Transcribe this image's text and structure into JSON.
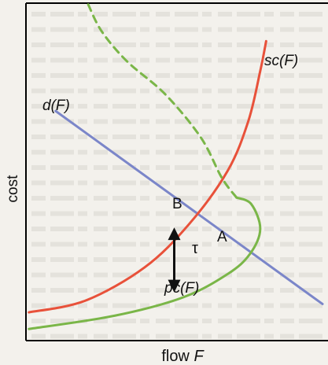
{
  "chart_data": {
    "type": "line",
    "title": "",
    "xlabel_prefix": "flow",
    "xlabel_var": "F",
    "ylabel": "cost",
    "grid": false,
    "background_text_note": "faint unreadable bleed-through text from facing page",
    "xlim": [
      0,
      10
    ],
    "ylim": [
      0,
      10
    ],
    "series": [
      {
        "name": "d(F)",
        "color": "#7b86c9",
        "style": "solid",
        "x": [
          1.0,
          10.0
        ],
        "y": [
          6.9,
          1.1
        ]
      },
      {
        "name": "sc(F)",
        "color": "#e8513a",
        "style": "solid",
        "x": [
          0.1,
          2.0,
          4.0,
          5.5,
          6.8,
          7.5,
          7.9,
          8.1
        ],
        "y": [
          0.85,
          1.2,
          2.2,
          3.5,
          5.1,
          6.6,
          8.1,
          9.0
        ]
      },
      {
        "name": "pc(F)",
        "color": "#7ab648",
        "style": "solid",
        "x": [
          0.1,
          3.0,
          5.3,
          6.8,
          7.55,
          7.9,
          7.6,
          7.1
        ],
        "y": [
          0.35,
          0.75,
          1.3,
          2.0,
          2.6,
          3.35,
          4.1,
          4.3
        ]
      },
      {
        "name": "",
        "color": "#7ab648",
        "style": "dashed",
        "x": [
          7.1,
          6.6,
          5.9,
          4.7,
          3.4,
          2.55,
          2.1
        ],
        "y": [
          4.3,
          4.9,
          6.1,
          7.4,
          8.4,
          9.3,
          10.1
        ]
      }
    ],
    "annotations": {
      "B": {
        "text": "B",
        "x": 5.5,
        "y": 3.85
      },
      "A": {
        "text": "A",
        "x": 6.8,
        "y": 2.35
      },
      "tau": {
        "text": "τ",
        "x": 5.6,
        "y": 2.4
      },
      "d_label": {
        "text": "d(F)",
        "x": 0.6,
        "y": 7.3
      },
      "sc_label": {
        "text": "sc(F)",
        "x": 8.1,
        "y": 9.3
      },
      "pc_label": {
        "text": "pc(F)",
        "x": 4.7,
        "y": 1.05
      }
    },
    "arrow": {
      "x": 5.0,
      "y_from": 3.4,
      "y_to": 1.45,
      "color": "#111111",
      "double_headed": true
    }
  }
}
